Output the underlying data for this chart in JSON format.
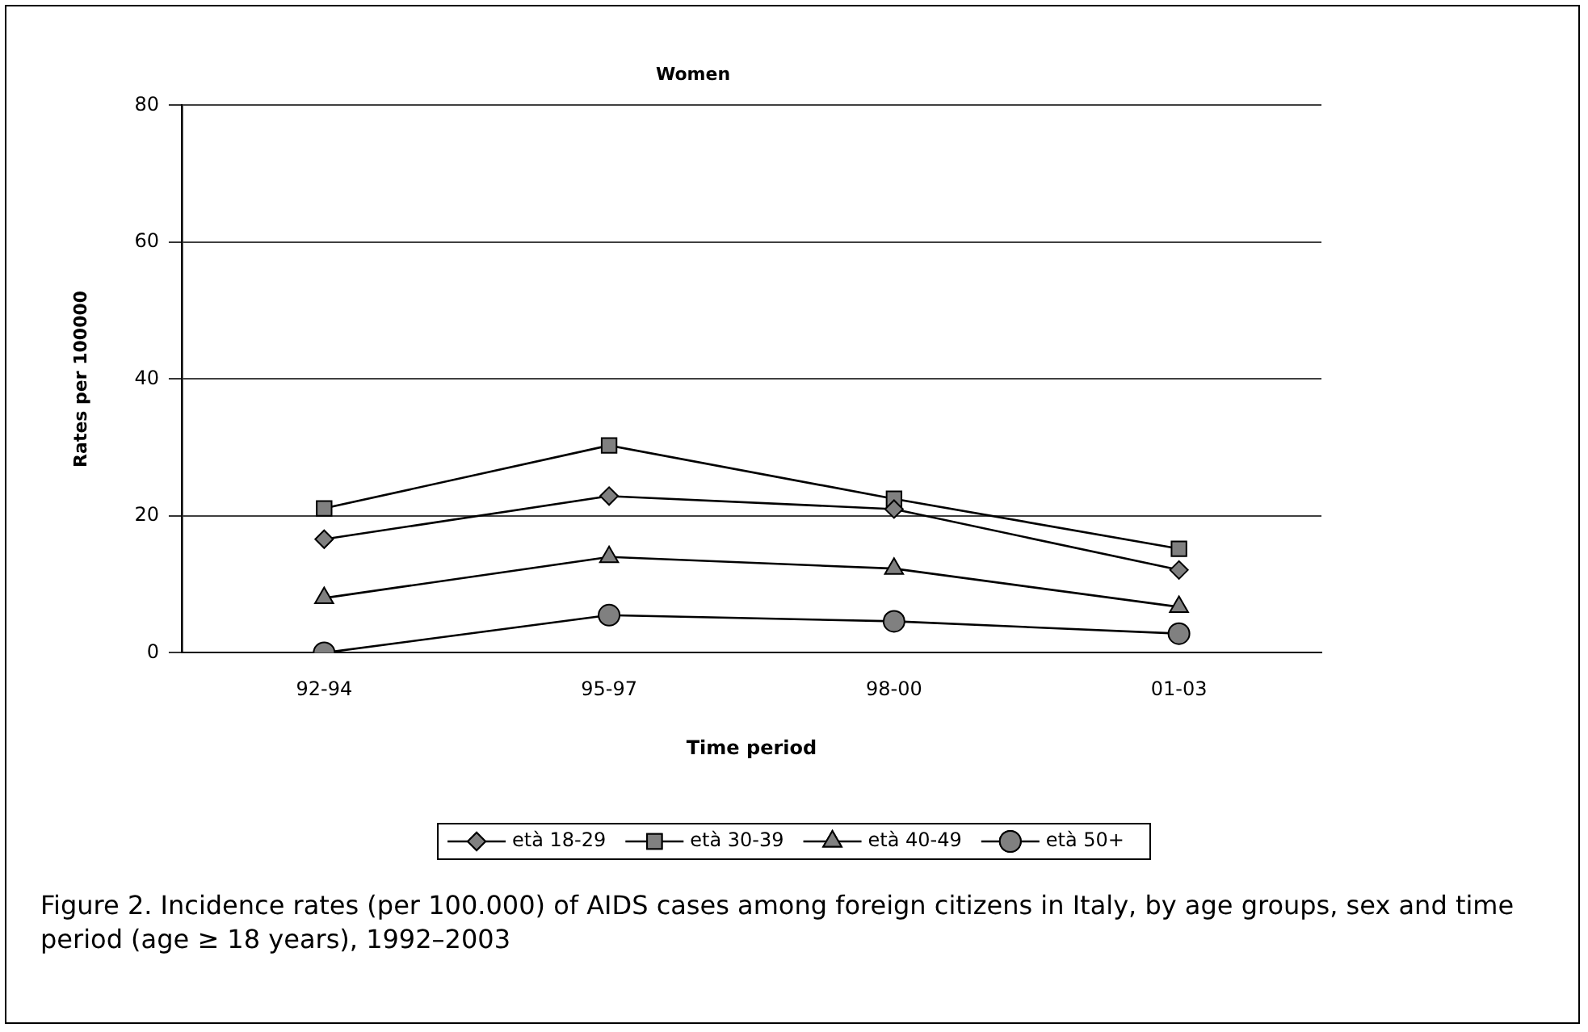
{
  "chart_data": {
    "type": "line",
    "title": "Women",
    "xlabel": "Time period",
    "ylabel": "Rates per 100000",
    "categories": [
      "92-94",
      "95-97",
      "98-00",
      "01-03"
    ],
    "series": [
      {
        "name": "età 18-29",
        "color": "#808080",
        "marker": "diamond",
        "values": [
          16.6,
          22.9,
          21.0,
          12.1
        ]
      },
      {
        "name": "età 30-39",
        "color": "#808080",
        "marker": "square",
        "values": [
          21.1,
          30.3,
          22.5,
          15.2
        ]
      },
      {
        "name": "età 40-49",
        "color": "#808080",
        "marker": "triangle",
        "values": [
          8.0,
          14.0,
          12.3,
          6.7
        ]
      },
      {
        "name": "età 50+",
        "color": "#808080",
        "marker": "circle",
        "values": [
          0,
          5.5,
          4.6,
          2.8
        ]
      }
    ],
    "ylim": [
      0,
      80
    ],
    "yticks": [
      0,
      20,
      40,
      60,
      80
    ],
    "grid": "y",
    "legend": "bottom",
    "annotations": [
      "Figure 2. Incidence rates (per 100.000) of AIDS cases among foreign citizens in Italy, by age groups, sex and time period (age ≥ 18 years), 1992–2003"
    ]
  }
}
